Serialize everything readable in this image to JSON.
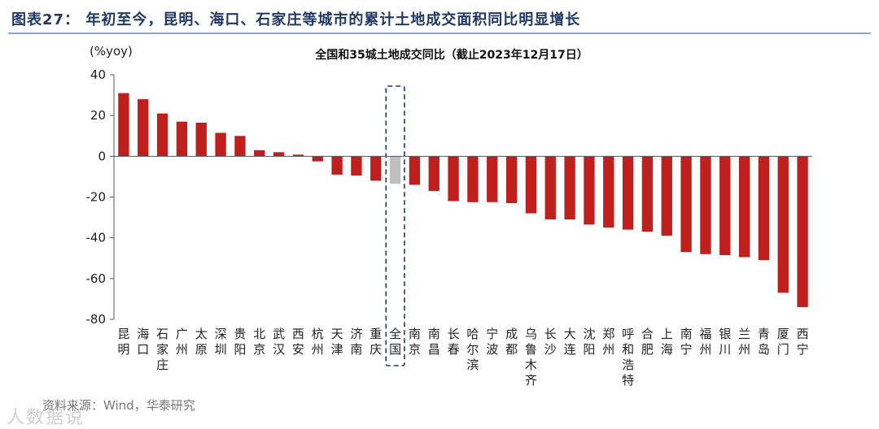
{
  "figure": {
    "title": "图表27：  年初至今，昆明、海口、石家庄等城市的累计土地成交面积同比明显增长",
    "source": "资料来源：Wind，华泰研究",
    "watermark": "人数据说"
  },
  "chart_data": {
    "type": "bar",
    "title": "全国和35城土地成交同比（截止2023年12月17日）",
    "ylabel": "(%yoy)",
    "xlabel": "",
    "ylim": [
      -80,
      40
    ],
    "yticks": [
      40,
      20,
      0,
      -20,
      -40,
      -60,
      -80
    ],
    "grid": false,
    "categories": [
      "昆明",
      "海口",
      "石家庄",
      "广州",
      "太原",
      "深圳",
      "贵阳",
      "北京",
      "武汉",
      "西安",
      "杭州",
      "天津",
      "济南",
      "重庆",
      "全国",
      "南京",
      "南昌",
      "长春",
      "哈尔滨",
      "宁波",
      "成都",
      "乌鲁木齐",
      "长沙",
      "大连",
      "沈阳",
      "郑州",
      "呼和浩特",
      "合肥",
      "上海",
      "南宁",
      "福州",
      "银川",
      "兰州",
      "青岛",
      "厦门",
      "西宁"
    ],
    "values": [
      31,
      28,
      21,
      17,
      16.5,
      11.5,
      10,
      3,
      2,
      0.8,
      -2.5,
      -9,
      -9.5,
      -12,
      -13.5,
      -14,
      -17,
      -22,
      -22.5,
      -22.5,
      -23,
      -28,
      -31,
      -31,
      -33.5,
      -35,
      -36,
      -37,
      -39,
      -47,
      -48,
      -48.5,
      -49.5,
      -51,
      -67,
      -74
    ],
    "highlight_category": "全国",
    "colors": {
      "bar": "#c0201d",
      "highlight": "#bfbfbf",
      "highlight_box": "#1f3864"
    }
  }
}
